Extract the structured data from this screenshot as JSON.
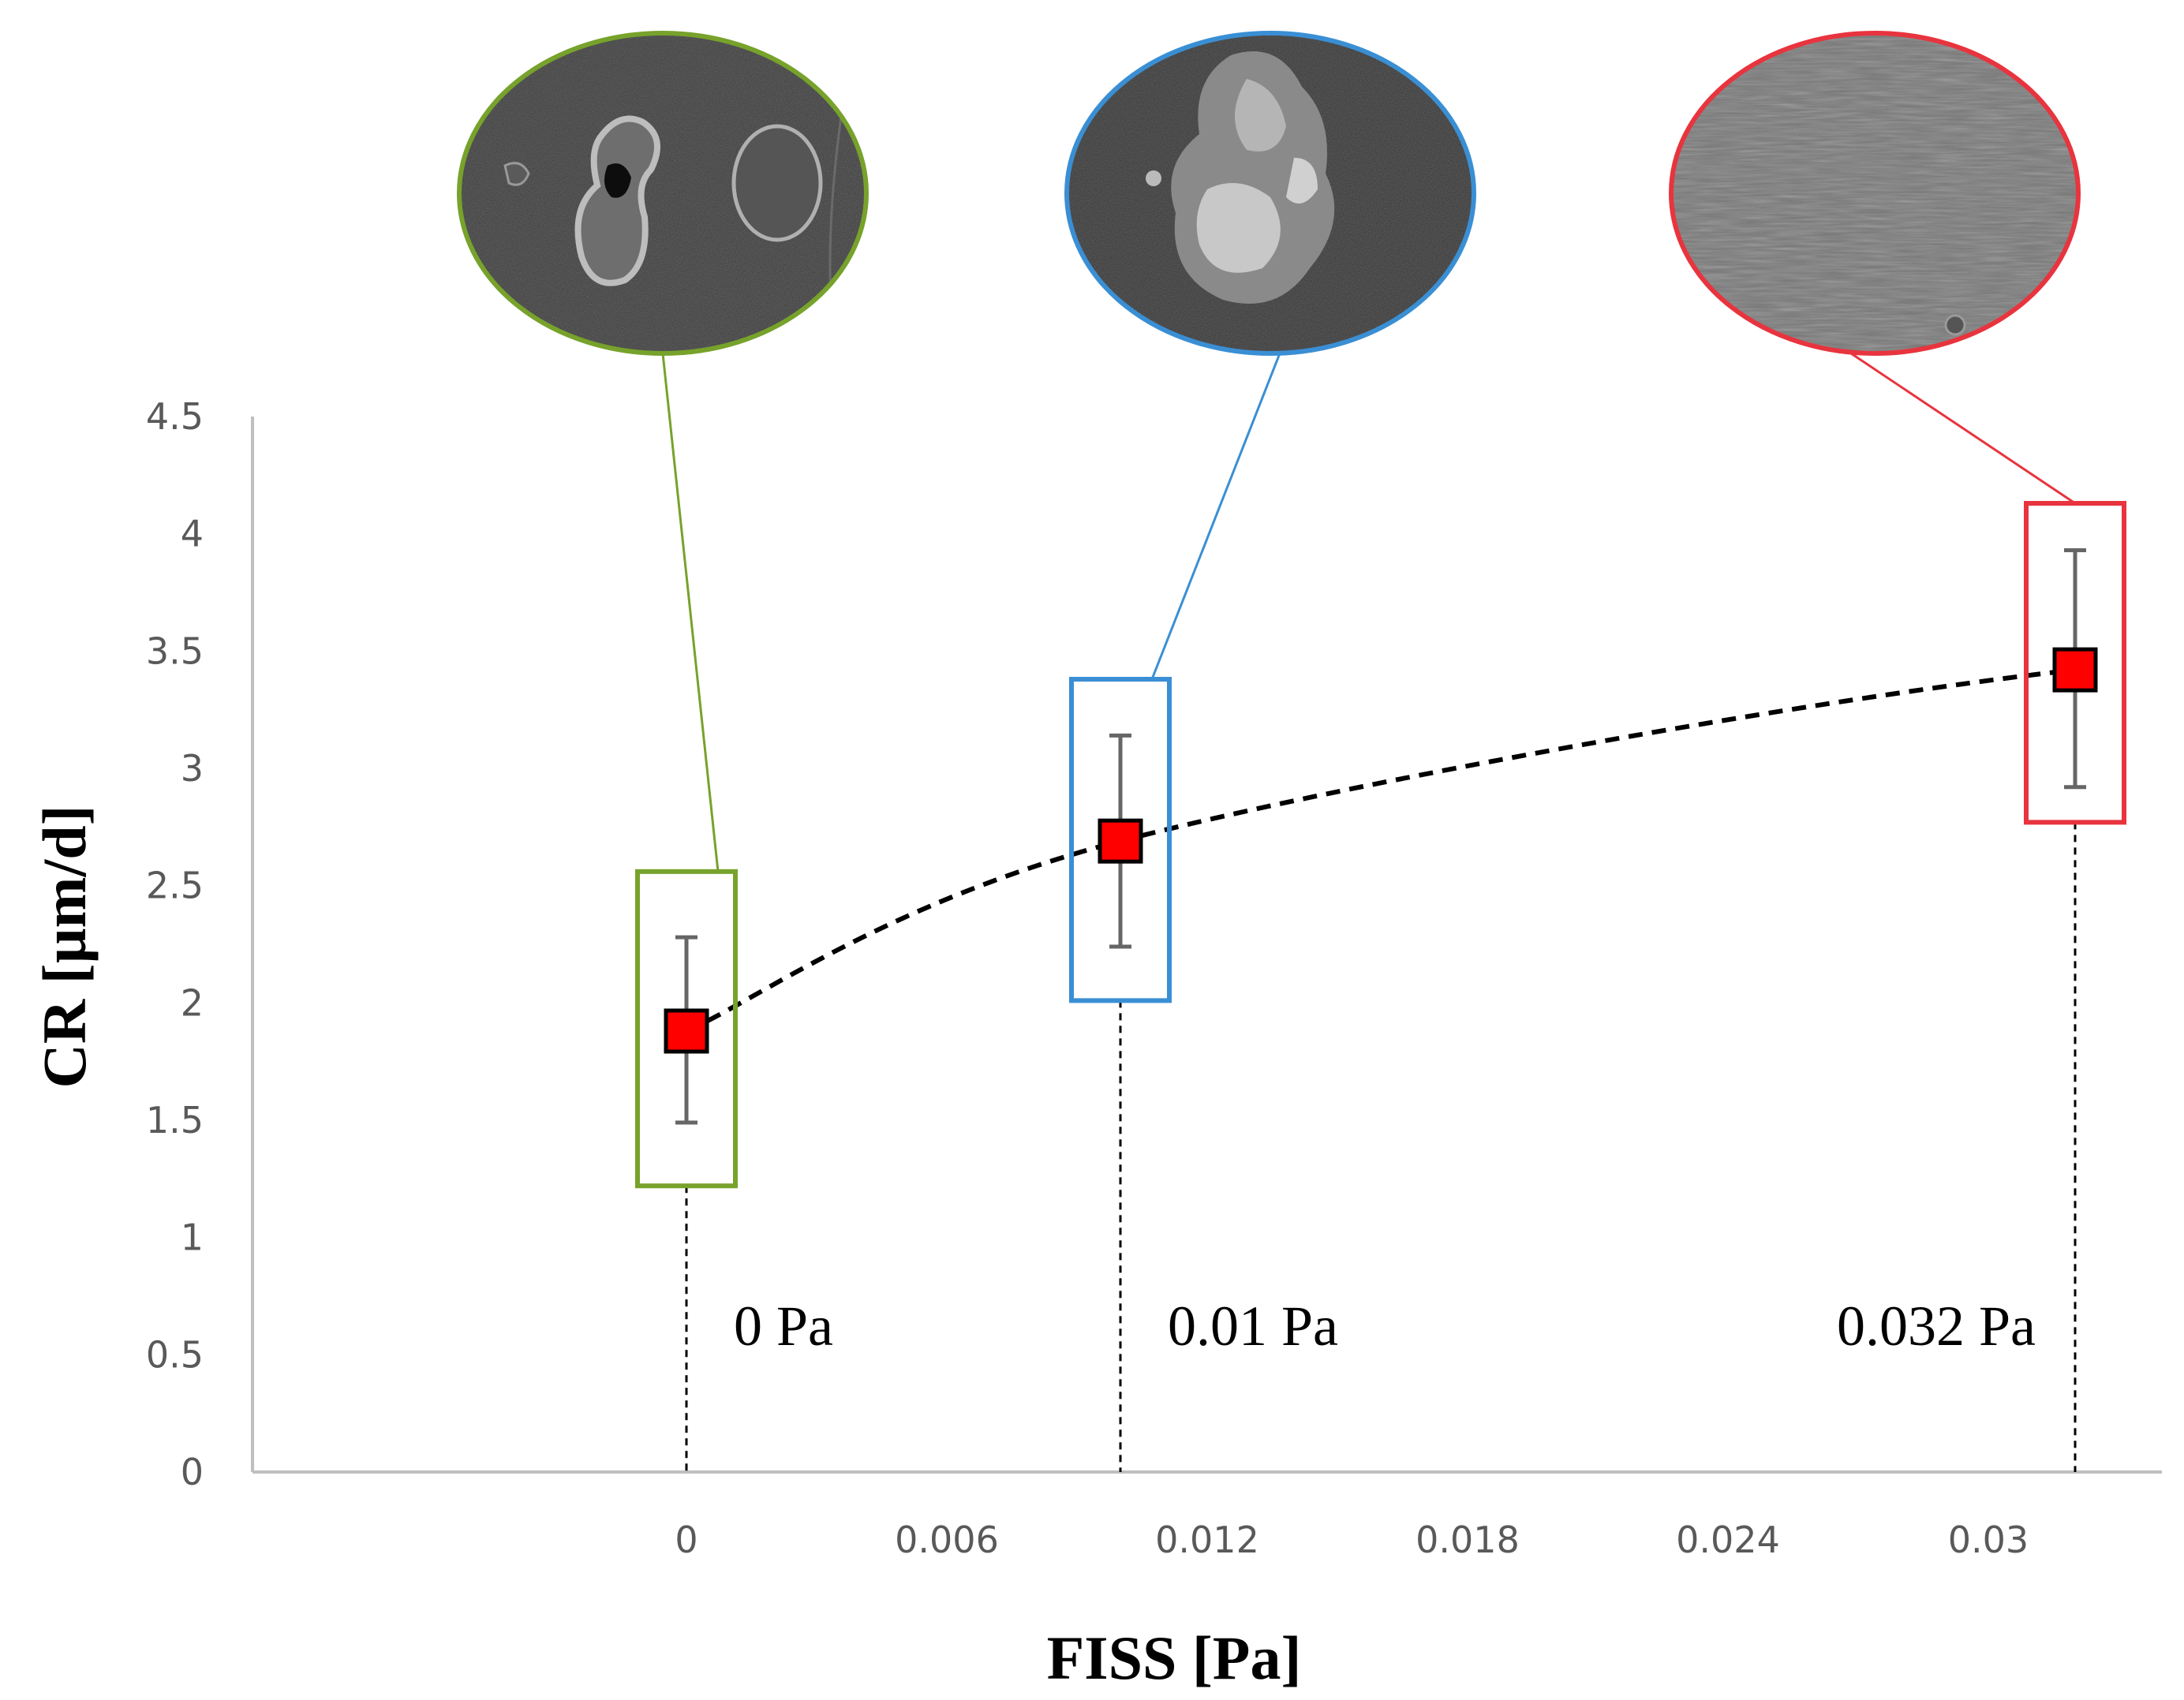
{
  "chart_data": {
    "type": "scatter",
    "xlabel": "FISS [Pa]",
    "ylabel": "CR [µm/d]",
    "xlim": [
      -0.01,
      0.034
    ],
    "ylim": [
      0,
      4.5
    ],
    "x_ticks": [
      {
        "value": 0,
        "label": "0"
      },
      {
        "value": 0.006,
        "label": "0.006"
      },
      {
        "value": 0.012,
        "label": "0.012"
      },
      {
        "value": 0.018,
        "label": "0.018"
      },
      {
        "value": 0.024,
        "label": "0.024"
      },
      {
        "value": 0.03,
        "label": "0.03"
      }
    ],
    "y_ticks": [
      {
        "value": 0,
        "label": "0"
      },
      {
        "value": 0.5,
        "label": "0.5"
      },
      {
        "value": 1,
        "label": "1"
      },
      {
        "value": 1.5,
        "label": "1.5"
      },
      {
        "value": 2,
        "label": "2"
      },
      {
        "value": 2.5,
        "label": "2.5"
      },
      {
        "value": 3,
        "label": "3"
      },
      {
        "value": 3.5,
        "label": "3.5"
      },
      {
        "value": 4,
        "label": "4"
      },
      {
        "value": 4.5,
        "label": "4.5"
      }
    ],
    "grid": false,
    "legend": "none",
    "trend_line": {
      "style": "dashed",
      "color": "#000000",
      "type": "curve"
    },
    "points": [
      {
        "x": 0,
        "y": 1.88,
        "err_low": 1.49,
        "err_high": 2.28,
        "box_low": 1.22,
        "box_high": 2.56,
        "label": "0 Pa",
        "color": "#77a22b",
        "image": "sem-micrograph-pitting"
      },
      {
        "x": 0.01,
        "y": 2.69,
        "err_low": 2.24,
        "err_high": 3.14,
        "box_low": 2.01,
        "box_high": 3.38,
        "label": "0.01 Pa",
        "color": "#3a8fd4",
        "image": "sem-micrograph-corrosion-products"
      },
      {
        "x": 0.032,
        "y": 3.42,
        "err_low": 2.92,
        "err_high": 3.93,
        "box_low": 2.77,
        "box_high": 4.13,
        "label": "0.032 Pa",
        "color": "#e8343e",
        "image": "sem-micrograph-uniform-surface"
      }
    ],
    "marker_color": "#ff0000"
  }
}
